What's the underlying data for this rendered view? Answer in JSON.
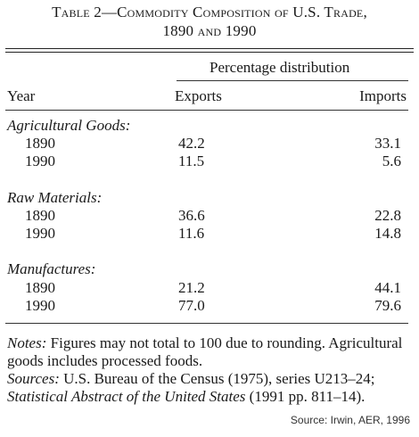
{
  "title": {
    "prefix": "Table 2",
    "dash": "—",
    "line1_rest": "Commodity Composition of U.S. Trade,",
    "line2": "1890 and 1990"
  },
  "header": {
    "spanner": "Percentage distribution",
    "year": "Year",
    "exports": "Exports",
    "imports": "Imports"
  },
  "groups": [
    {
      "label": "Agricultural Goods:",
      "rows": [
        {
          "year": "1890",
          "exports": "42.2",
          "imports": "33.1"
        },
        {
          "year": "1990",
          "exports": "11.5",
          "imports": "5.6"
        }
      ]
    },
    {
      "label": "Raw Materials:",
      "rows": [
        {
          "year": "1890",
          "exports": "36.6",
          "imports": "22.8"
        },
        {
          "year": "1990",
          "exports": "11.6",
          "imports": "14.8"
        }
      ]
    },
    {
      "label": "Manufactures:",
      "rows": [
        {
          "year": "1890",
          "exports": "21.2",
          "imports": "44.1"
        },
        {
          "year": "1990",
          "exports": "77.0",
          "imports": "79.6"
        }
      ]
    }
  ],
  "notes": {
    "notes_label": "Notes:",
    "notes_text": " Figures may not total to 100 due to rounding. Agricultural goods includes processed foods.",
    "sources_label": "Sources:",
    "sources_text1": " U.S. Bureau of the Census (1975), series U213–24; ",
    "sources_title": "Statistical Abstract of the United States",
    "sources_text2": " (1991 pp. 811–14)."
  },
  "source_credit": "Source: Irwin, AER, 1996"
}
